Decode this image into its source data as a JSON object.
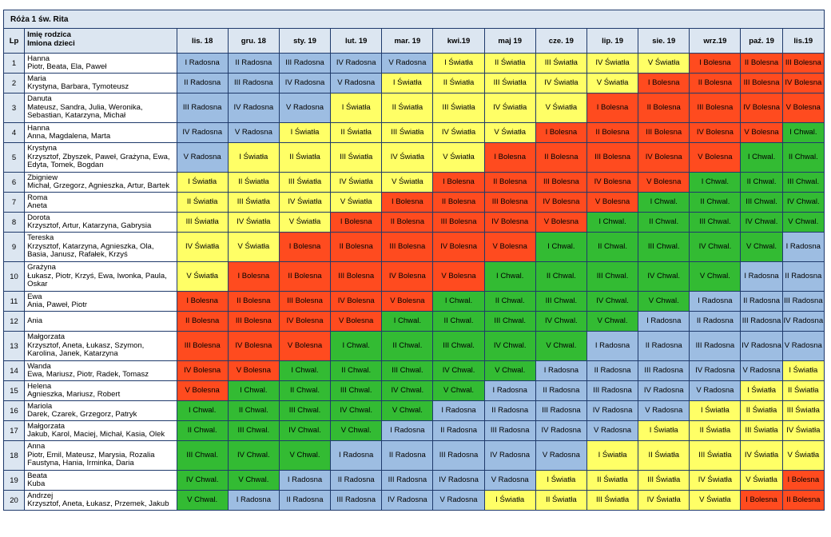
{
  "title": "Róża 1 św. Rita",
  "headers": {
    "lp": "Lp",
    "parent": "Imię rodzica",
    "children": "Imiona dzieci",
    "months": [
      "lis. 18",
      "gru. 18",
      "sty. 19",
      "lut. 19",
      "mar. 19",
      "kwi.19",
      "maj 19",
      "cze. 19",
      "lip. 19",
      "sie. 19",
      "wrz.19",
      "paź. 19",
      "lis.19"
    ]
  },
  "colors": {
    "Radosna": "#9dbde2",
    "Światła": "#ffff66",
    "Bolesna": "#ff4b1f",
    "Chwal.": "#33bb33",
    "header_bg": "#dce6f1",
    "border": "#1f3a6b"
  },
  "rows": [
    {
      "lp": "1",
      "parent": "Hanna",
      "children": [
        "Piotr, Beata, Ela, Paweł"
      ],
      "cells": [
        "I Radosna",
        "II Radosna",
        "III Radosna",
        "IV Radosna",
        "V Radosna",
        "I Światła",
        "II Światła",
        "III Światła",
        "IV Światła",
        "V Światła",
        "I Bolesna",
        "II Bolesna",
        "III Bolesna"
      ]
    },
    {
      "lp": "2",
      "parent": "Maria",
      "children": [
        "Krystyna, Barbara, Tymoteusz"
      ],
      "cells": [
        "II Radosna",
        "III Radosna",
        "IV Radosna",
        "V Radosna",
        "I Światła",
        "II Światła",
        "III Światła",
        "IV Światła",
        "V Światła",
        "I Bolesna",
        "II Bolesna",
        "III Bolesna",
        "IV Bolesna"
      ]
    },
    {
      "lp": "3",
      "parent": "Danuta",
      "children": [
        "Mateusz, Sandra, Julia, Weronika,",
        "Sebastian, Katarzyna, Michał"
      ],
      "cells": [
        "III Radosna",
        "IV Radosna",
        "V Radosna",
        "I Światła",
        "II Światła",
        "III Światła",
        "IV Światła",
        "V Światła",
        "I Bolesna",
        "II Bolesna",
        "III Bolesna",
        "IV Bolesna",
        "V Bolesna"
      ]
    },
    {
      "lp": "4",
      "parent": "Hanna",
      "children": [
        "Anna, Magdalena, Marta"
      ],
      "cells": [
        "IV Radosna",
        "V Radosna",
        "I Światła",
        "II Światła",
        "III Światła",
        "IV Światła",
        "V Światła",
        "I Bolesna",
        "II Bolesna",
        "III Bolesna",
        "IV Bolesna",
        "V Bolesna",
        "I Chwal."
      ]
    },
    {
      "lp": "5",
      "parent": "Krystyna",
      "children": [
        "Krzysztof, Zbyszek, Paweł, Grażyna, Ewa,",
        "Edyta, Tomek, Bogdan"
      ],
      "cells": [
        "V Radosna",
        "I Światła",
        "II Światła",
        "III Światła",
        "IV Światła",
        "V Światła",
        "I Bolesna",
        "II Bolesna",
        "III Bolesna",
        "IV Bolesna",
        "V Bolesna",
        "I Chwal.",
        "II Chwal."
      ]
    },
    {
      "lp": "6",
      "parent": "Zbigniew",
      "children": [
        "Michał, Grzegorz, Agnieszka, Artur, Bartek"
      ],
      "cells": [
        "I Światła",
        "II Światła",
        "III Światła",
        "IV Światła",
        "V Światła",
        "I Bolesna",
        "II Bolesna",
        "III Bolesna",
        "IV Bolesna",
        "V Bolesna",
        "I Chwal.",
        "II Chwal.",
        "III Chwal."
      ]
    },
    {
      "lp": "7",
      "parent": "Roma",
      "children": [
        "Aneta"
      ],
      "cells": [
        "II Światła",
        "III Światła",
        "IV Światła",
        "V Światła",
        "I Bolesna",
        "II Bolesna",
        "III Bolesna",
        "IV Bolesna",
        "V Bolesna",
        "I Chwal.",
        "II Chwal.",
        "III Chwal.",
        "IV Chwal."
      ]
    },
    {
      "lp": "8",
      "parent": "Dorota",
      "children": [
        "Krzysztof, Artur, Katarzyna, Gabrysia"
      ],
      "cells": [
        "III Światła",
        "IV Światła",
        "V Światła",
        "I Bolesna",
        "II Bolesna",
        "III Bolesna",
        "IV Bolesna",
        "V Bolesna",
        "I Chwal.",
        "II Chwal.",
        "III Chwal.",
        "IV Chwal.",
        "V Chwal."
      ]
    },
    {
      "lp": "9",
      "parent": "Tereska",
      "children": [
        "Krzysztof, Katarzyna, Agnieszka, Ola,",
        "Basia, Janusz, Rafałek, Krzyś"
      ],
      "cells": [
        "IV Światła",
        "V Światła",
        "I Bolesna",
        "II Bolesna",
        "III Bolesna",
        "IV Bolesna",
        "V Bolesna",
        "I Chwal.",
        "II Chwal.",
        "III Chwal.",
        "IV Chwal.",
        "V Chwal.",
        "I Radosna"
      ]
    },
    {
      "lp": "10",
      "parent": "Grażyna",
      "children": [
        "Łukasz, Piotr, Krzyś, Ewa, Iwonka, Paula,",
        "Oskar"
      ],
      "cells": [
        "V Światła",
        "I Bolesna",
        "II Bolesna",
        "III Bolesna",
        "IV Bolesna",
        "V Bolesna",
        "I Chwal.",
        "II Chwal.",
        "III Chwal.",
        "IV Chwal.",
        "V Chwal.",
        "I Radosna",
        "II Radosna"
      ]
    },
    {
      "lp": "11",
      "parent": "Ewa",
      "children": [
        "Ania, Paweł, Piotr"
      ],
      "cells": [
        "I Bolesna",
        "II Bolesna",
        "III Bolesna",
        "IV Bolesna",
        "V Bolesna",
        "I Chwal.",
        "II Chwal.",
        "III Chwal.",
        "IV Chwal.",
        "V Chwal.",
        "I Radosna",
        "II Radosna",
        "III Radosna"
      ]
    },
    {
      "lp": "12",
      "parent": "Ania",
      "children": [],
      "cells": [
        "II Bolesna",
        "III Bolesna",
        "IV Bolesna",
        "V Bolesna",
        "I Chwal.",
        "II Chwal.",
        "III Chwal.",
        "IV Chwal.",
        "V Chwal.",
        "I Radosna",
        "II Radosna",
        "III Radosna",
        "IV Radosna"
      ]
    },
    {
      "lp": "13",
      "parent": "Małgorzata",
      "children": [
        "Krzysztof, Aneta, Łukasz, Szymon,",
        "Karolina, Janek, Katarzyna"
      ],
      "cells": [
        "III Bolesna",
        "IV Bolesna",
        "V Bolesna",
        "I Chwal.",
        "II Chwal.",
        "III Chwal.",
        "IV Chwal.",
        "V Chwal.",
        "I Radosna",
        "II Radosna",
        "III Radosna",
        "IV Radosna",
        "V Radosna"
      ]
    },
    {
      "lp": "14",
      "parent": "Wanda",
      "children": [
        "Ewa, Mariusz, Piotr, Radek, Tomasz"
      ],
      "cells": [
        "IV Bolesna",
        "V Bolesna",
        "I Chwal.",
        "II Chwal.",
        "III Chwal.",
        "IV Chwal.",
        "V Chwal.",
        "I Radosna",
        "II Radosna",
        "III Radosna",
        "IV Radosna",
        "V Radosna",
        "I Światła"
      ]
    },
    {
      "lp": "15",
      "parent": "Helena",
      "children": [
        "Agnieszka, Mariusz, Robert"
      ],
      "cells": [
        "V Bolesna",
        "I Chwal.",
        "II Chwal.",
        "III Chwal.",
        "IV Chwal.",
        "V Chwal.",
        "I Radosna",
        "II Radosna",
        "III Radosna",
        "IV Radosna",
        "V Radosna",
        "I Światła",
        "II Światła"
      ]
    },
    {
      "lp": "16",
      "parent": "Mariola",
      "children": [
        "Darek, Czarek, Grzegorz, Patryk"
      ],
      "cells": [
        "I Chwal.",
        "II Chwal.",
        "III Chwal.",
        "IV Chwal.",
        "V Chwal.",
        "I Radosna",
        "II Radosna",
        "III Radosna",
        "IV Radosna",
        "V Radosna",
        "I Światła",
        "II Światła",
        "III Światła"
      ]
    },
    {
      "lp": "17",
      "parent": "Małgorzata",
      "children": [
        "Jakub, Karol, Maciej, Michał, Kasia, Olek"
      ],
      "cells": [
        "II Chwal.",
        "III Chwal.",
        "IV Chwal.",
        "V Chwal.",
        "I Radosna",
        "II Radosna",
        "III Radosna",
        "IV Radosna",
        "V Radosna",
        "I Światła",
        "II Światła",
        "III Światła",
        "IV Światła"
      ]
    },
    {
      "lp": "18",
      "parent": "Anna",
      "children": [
        "Piotr, Emil, Mateusz, Marysia, Rozalia",
        "Faustyna, Hania, Irminka, Daria"
      ],
      "cells": [
        "III Chwal.",
        "IV Chwal.",
        "V Chwal.",
        "I Radosna",
        "II Radosna",
        "III Radosna",
        "IV Radosna",
        "V Radosna",
        "I Światła",
        "II Światła",
        "III Światła",
        "IV Światła",
        "V Światła"
      ]
    },
    {
      "lp": "19",
      "parent": "Beata",
      "children": [
        "Kuba"
      ],
      "cells": [
        "IV Chwal.",
        "V Chwal.",
        "I Radosna",
        "II Radosna",
        "III Radosna",
        "IV Radosna",
        "V Radosna",
        "I Światła",
        "II Światła",
        "III Światła",
        "IV Światła",
        "V Światła",
        "I Bolesna"
      ]
    },
    {
      "lp": "20",
      "parent": "Andrzej",
      "children": [
        "Krzysztof, Aneta, Łukasz, Przemek, Jakub"
      ],
      "cells": [
        "V Chwal.",
        "I Radosna",
        "II Radosna",
        "III Radosna",
        "IV Radosna",
        "V Radosna",
        "I Światła",
        "II Światła",
        "III Światła",
        "IV Światła",
        "V Światła",
        "I Bolesna",
        "II Bolesna"
      ]
    }
  ]
}
